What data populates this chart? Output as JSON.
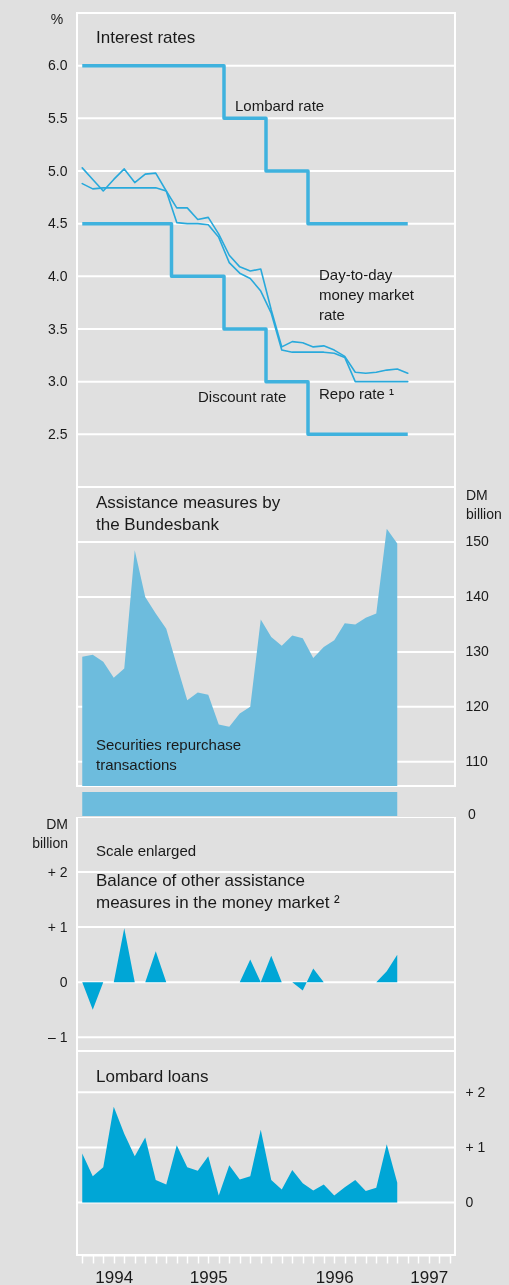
{
  "chart_data": [
    {
      "type": "line",
      "title": "Interest rates",
      "ylabel": "%",
      "ylim": [
        2,
        6.5
      ],
      "yticks": [
        {
          "value": 6,
          "label": "6.0"
        },
        5.5,
        {
          "value": 5,
          "label": "5.0"
        },
        4.5,
        {
          "value": 4,
          "label": "4.0"
        },
        3.5,
        {
          "value": 3,
          "label": "3.0"
        },
        2.5
      ],
      "categories": [
        null,
        null,
        null,
        null,
        null,
        null,
        null,
        null,
        null,
        null,
        null,
        null,
        null,
        null,
        null,
        null,
        null,
        null,
        null,
        null,
        null,
        null,
        null,
        null,
        null,
        null,
        null,
        null,
        null,
        null,
        null,
        null
      ],
      "tick_labels": "y",
      "grid": "y",
      "series": [
        {
          "name": "Lombard rate",
          "type": "step",
          "color": "#3fb2de",
          "values": [
            6,
            6,
            6,
            6,
            6,
            6,
            6,
            6,
            6,
            6,
            6,
            6,
            6,
            6,
            5.5,
            5.5,
            5.5,
            5.5,
            5,
            5,
            5,
            5,
            4.5,
            4.5,
            4.5,
            4.5,
            4.5,
            4.5,
            4.5,
            4.5,
            4.5,
            4.5
          ]
        },
        {
          "name": "Discount rate",
          "type": "step",
          "color": "#3fb2de",
          "values": [
            4.5,
            4.5,
            4.5,
            4.5,
            4.5,
            4.5,
            4.5,
            4.5,
            4.5,
            4,
            4,
            4,
            4,
            4,
            3.5,
            3.5,
            3.5,
            3.5,
            3,
            3,
            3,
            3,
            2.5,
            2.5,
            2.5,
            2.5,
            2.5,
            2.5,
            2.5,
            2.5,
            2.5,
            2.5
          ]
        },
        {
          "name": "Day-to-day money market rate",
          "type": "line",
          "color": "#29a9db",
          "values": [
            5.03,
            4.92,
            4.81,
            4.92,
            5.02,
            4.89,
            4.97,
            4.98,
            4.81,
            4.65,
            4.65,
            4.54,
            4.56,
            4.4,
            4.2,
            4.09,
            4.05,
            4.07,
            3.68,
            3.33,
            3.38,
            3.37,
            3.33,
            3.34,
            3.3,
            3.24,
            3.09,
            3.08,
            3.09,
            3.11,
            3.12,
            3.08
          ]
        },
        {
          "name": "Repo rate ¹",
          "type": "line",
          "color": "#29a9db",
          "values": [
            4.88,
            4.83,
            4.84,
            4.84,
            4.84,
            4.84,
            4.84,
            4.84,
            4.81,
            4.51,
            4.5,
            4.5,
            4.49,
            4.37,
            4.13,
            4.03,
            3.98,
            3.86,
            3.65,
            3.3,
            3.28,
            3.28,
            3.28,
            3.28,
            3.27,
            3.23,
            3,
            3,
            3,
            3,
            3,
            3
          ]
        }
      ]
    },
    {
      "type": "area",
      "title": "Assistance measures by the Bundesbank",
      "y2label": "DM billion",
      "annotations": [
        "0"
      ],
      "y2lim": [
        105.6,
        160
      ],
      "y2ticks": [
        110,
        120,
        130,
        140,
        150
      ],
      "categories": [
        null,
        null,
        null,
        null,
        null,
        null,
        null,
        null,
        null,
        null,
        null,
        null,
        null,
        null,
        null,
        null,
        null,
        null,
        null,
        null,
        null,
        null,
        null,
        null,
        null,
        null,
        null,
        null,
        null,
        null,
        null,
        null,
        null,
        null,
        null,
        null
      ],
      "tick_labels": "y2",
      "grid": "y",
      "series": [
        {
          "name": "Securities repurchase transactions",
          "color": "#6dbcdd",
          "axis": "y2",
          "values": [
            129.1,
            129.5,
            128.2,
            125.3,
            127,
            148.5,
            140,
            137,
            134.2,
            127.6,
            121.2,
            122.6,
            122.2,
            116.8,
            116.4,
            118.8,
            120,
            135.9,
            132.7,
            131.1,
            133,
            132.5,
            128.9,
            130.9,
            132.1,
            135.2,
            135,
            136.2,
            137,
            152.4,
            149.7,
            null,
            null,
            null,
            null,
            null
          ]
        }
      ]
    },
    {
      "type": "area",
      "title": "Balance of other assistance measures in the money market ²",
      "annotations": [
        "Scale enlarged"
      ],
      "ylabel": "DM billion",
      "ylim": [
        -1.25,
        3
      ],
      "yticks": [
        {
          "value": 2,
          "label": "+ 2"
        },
        {
          "value": 1,
          "label": "+ 1"
        },
        0,
        {
          "value": -1,
          "label": "– 1"
        }
      ],
      "categories": [
        null,
        null,
        null,
        null,
        null,
        null,
        null,
        null,
        null,
        null,
        null,
        null,
        null,
        null,
        null,
        null,
        null,
        null,
        null,
        null,
        null,
        null,
        null,
        null,
        null,
        null,
        null,
        null,
        null,
        null,
        null,
        null,
        null,
        null,
        null,
        null
      ],
      "tick_labels": "y",
      "grid": "y",
      "series": [
        {
          "color": "#00a6d6",
          "values": [
            0,
            -0.5,
            0,
            0,
            0.98,
            0,
            0,
            0.56,
            0,
            0,
            0,
            0,
            0,
            0,
            0,
            0,
            0.41,
            0,
            0.48,
            0,
            0,
            -0.15,
            0.25,
            0,
            0,
            0,
            0,
            0,
            0,
            0.2,
            0.5,
            null,
            null,
            null,
            null,
            null
          ]
        }
      ]
    },
    {
      "type": "area",
      "title": "Lombard loans",
      "y2lim": [
        -0.95,
        2.75
      ],
      "y2ticks": [
        {
          "value": 2,
          "label": "+ 2"
        },
        {
          "value": 1,
          "label": "+ 1"
        },
        0
      ],
      "categories": [
        null,
        null,
        null,
        "1994",
        null,
        null,
        null,
        null,
        null,
        null,
        null,
        null,
        "1995",
        null,
        null,
        null,
        null,
        null,
        null,
        null,
        null,
        null,
        null,
        null,
        "1996",
        null,
        null,
        null,
        null,
        null,
        null,
        null,
        null,
        "1997",
        null,
        null
      ],
      "grid": "y",
      "series": [
        {
          "color": "#00a6d6",
          "axis": "y2",
          "values": [
            0.89,
            0.48,
            0.64,
            1.74,
            1.25,
            0.84,
            1.18,
            0.41,
            0.33,
            1.04,
            0.64,
            0.58,
            0.84,
            0.13,
            0.68,
            0.42,
            0.48,
            1.32,
            0.41,
            0.24,
            0.59,
            0.35,
            0.22,
            0.33,
            0.13,
            0.28,
            0.41,
            0.21,
            0.27,
            1.06,
            0.36,
            null,
            null,
            null,
            null,
            null
          ]
        }
      ]
    }
  ]
}
